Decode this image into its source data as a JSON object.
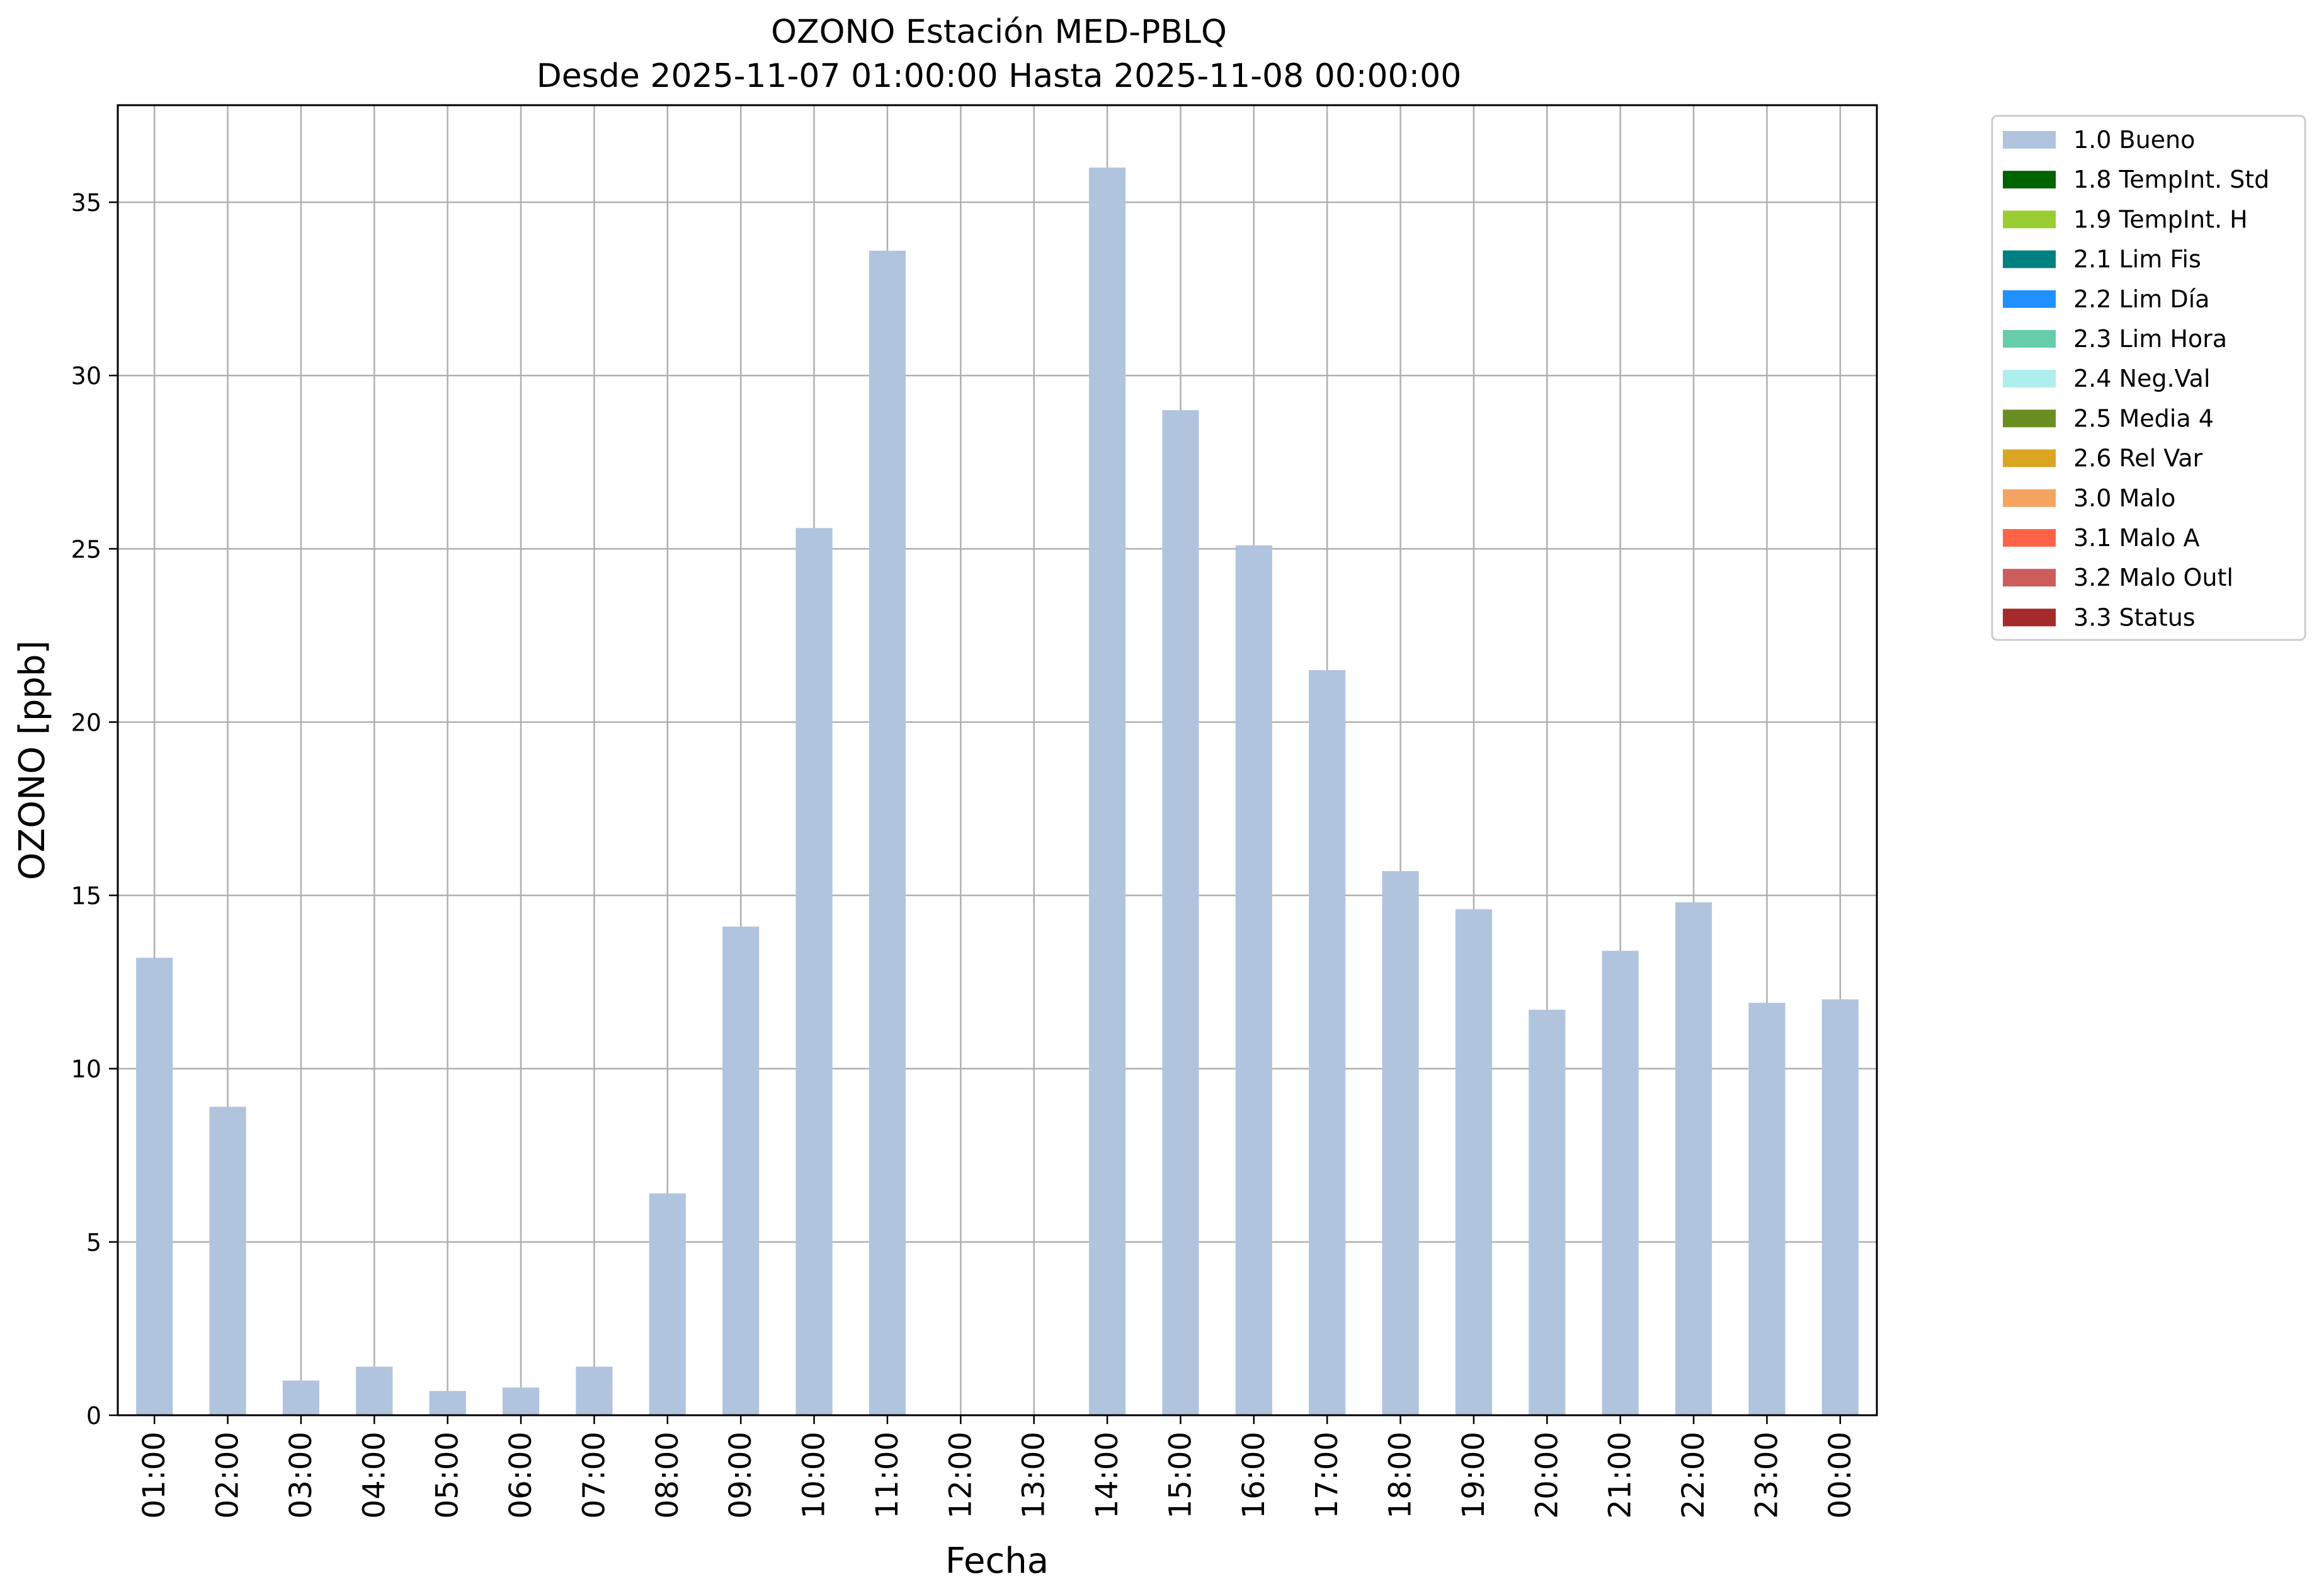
{
  "chart_data": {
    "type": "bar",
    "title": "OZONO Estación MED-PBLQ",
    "subtitle": "Desde 2025-11-07 01:00:00 Hasta 2025-11-08 00:00:00",
    "xlabel": "Fecha",
    "ylabel": "OZONO [ppb]",
    "ylim": [
      0,
      37.8
    ],
    "yticks": [
      0,
      5,
      10,
      15,
      20,
      25,
      30,
      35
    ],
    "grid": true,
    "legend_position": "outside-top-right",
    "categories": [
      "01:00",
      "02:00",
      "03:00",
      "04:00",
      "05:00",
      "06:00",
      "07:00",
      "08:00",
      "09:00",
      "10:00",
      "11:00",
      "12:00",
      "13:00",
      "14:00",
      "15:00",
      "16:00",
      "17:00",
      "18:00",
      "19:00",
      "20:00",
      "21:00",
      "22:00",
      "23:00",
      "00:00"
    ],
    "series": [
      {
        "name": "1.0 Bueno",
        "color": "#b0c4de",
        "values": [
          13.2,
          8.9,
          1.0,
          1.4,
          0.7,
          0.8,
          1.4,
          6.4,
          14.1,
          25.6,
          33.6,
          null,
          null,
          36.0,
          29.0,
          25.1,
          21.5,
          15.7,
          14.6,
          11.7,
          13.4,
          14.8,
          11.9,
          12.0
        ]
      }
    ],
    "legend": [
      {
        "label": "1.0 Bueno",
        "color": "#b0c4de"
      },
      {
        "label": "1.8 TempInt. Std",
        "color": "#006400"
      },
      {
        "label": "1.9 TempInt. H",
        "color": "#9acd32"
      },
      {
        "label": "2.1 Lim Fis",
        "color": "#008080"
      },
      {
        "label": "2.2 Lim Día",
        "color": "#1e90ff"
      },
      {
        "label": "2.3 Lim Hora",
        "color": "#66cdaa"
      },
      {
        "label": "2.4 Neg.Val",
        "color": "#afeeee"
      },
      {
        "label": "2.5 Media 4",
        "color": "#6b8e23"
      },
      {
        "label": "2.6 Rel Var",
        "color": "#daa520"
      },
      {
        "label": "3.0 Malo",
        "color": "#f4a460"
      },
      {
        "label": "3.1 Malo A",
        "color": "#ff6347"
      },
      {
        "label": "3.2 Malo Outl",
        "color": "#cd5c5c"
      },
      {
        "label": "3.3 Status",
        "color": "#a52a2a"
      }
    ]
  }
}
